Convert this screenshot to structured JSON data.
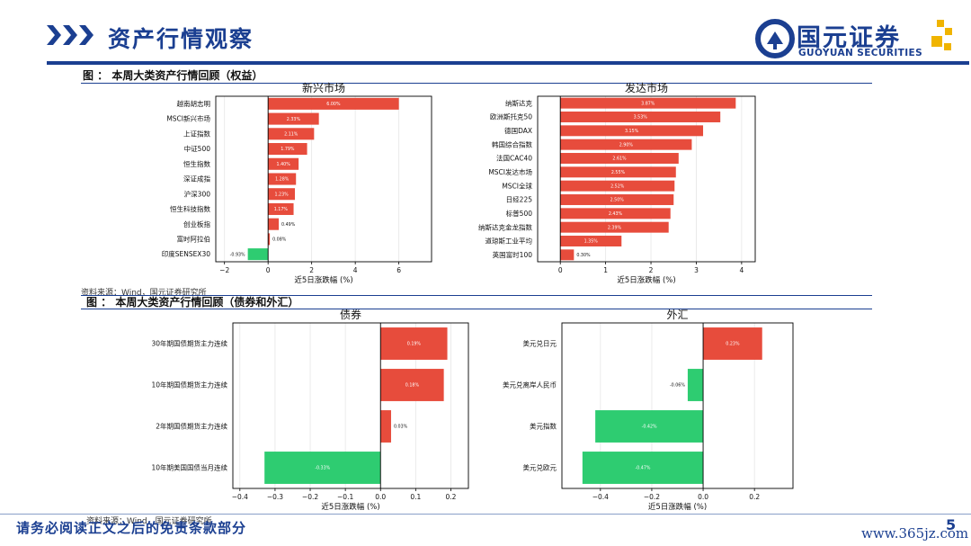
{
  "header": {
    "title": "资产行情观察"
  },
  "logo": {
    "name_cn": "国元证券",
    "name_en": "GUOYUAN SECURITIES"
  },
  "colors": {
    "brand": "#1b3f91",
    "positive": "#e74c3c",
    "negative": "#2ecc71",
    "logo_gold": "#f0b400"
  },
  "figures": {
    "equity": {
      "caption": "图 ： 本周大类资产行情回顾（权益）",
      "source": "资料来源：Wind，国元证券研究所"
    },
    "bonds_fx": {
      "caption": "图 ： 本周大类资产行情回顾（债券和外汇）",
      "source": "资料来源：Wind，国元证券研究所"
    }
  },
  "footer": {
    "disclaimer": "请务必阅读正文之后的免责条款部分",
    "page_number": "5",
    "watermark": "www.365jz.com"
  },
  "chart_data": [
    {
      "type": "bar",
      "orientation": "horizontal",
      "title": "新兴市场",
      "xlabel": "近5日涨跌幅 (%)",
      "xlim": [
        -2.4,
        7.5
      ],
      "xticks": [
        -2,
        0,
        2,
        4,
        6
      ],
      "categories": [
        "越南胡志明",
        "MSCI新兴市场",
        "上证指数",
        "中证500",
        "恒生指数",
        "深证成指",
        "沪深300",
        "恒生科技指数",
        "创业板指",
        "富时阿拉伯",
        "印度SENSEX30"
      ],
      "values": [
        6.0,
        2.33,
        2.11,
        1.79,
        1.4,
        1.28,
        1.23,
        1.17,
        0.49,
        0.08,
        -0.93
      ],
      "labels": [
        "6.00%",
        "2.33%",
        "2.11%",
        "1.79%",
        "1.40%",
        "1.28%",
        "1.23%",
        "1.17%",
        "0.49%",
        "0.08%",
        "-0.93%"
      ]
    },
    {
      "type": "bar",
      "orientation": "horizontal",
      "title": "发达市场",
      "xlabel": "近5日涨跌幅 (%)",
      "xlim": [
        -0.5,
        4.3
      ],
      "xticks": [
        0,
        1,
        2,
        3,
        4
      ],
      "categories": [
        "纳斯达克",
        "欧洲斯托克50",
        "德国DAX",
        "韩国综合指数",
        "法国CAC40",
        "MSCI发达市场",
        "MSCI全球",
        "日经225",
        "标普500",
        "纳斯达克金龙指数",
        "道琼斯工业平均",
        "英国富时100"
      ],
      "values": [
        3.87,
        3.53,
        3.15,
        2.9,
        2.61,
        2.55,
        2.52,
        2.5,
        2.43,
        2.39,
        1.35,
        0.3
      ],
      "labels": [
        "3.87%",
        "3.53%",
        "3.15%",
        "2.90%",
        "2.61%",
        "2.55%",
        "2.52%",
        "2.50%",
        "2.43%",
        "2.39%",
        "1.35%",
        "0.30%"
      ]
    },
    {
      "type": "bar",
      "orientation": "horizontal",
      "title": "债券",
      "xlabel": "近5日涨跌幅 (%)",
      "xlim": [
        -0.42,
        0.25
      ],
      "xticks": [
        -0.4,
        -0.3,
        -0.2,
        -0.1,
        0.0,
        0.1,
        0.2
      ],
      "categories": [
        "30年期国债期货主力连续",
        "10年期国债期货主力连续",
        "2年期国债期货主力连续",
        "10年期美国国债当月连续"
      ],
      "values": [
        0.19,
        0.18,
        0.03,
        -0.33
      ],
      "labels": [
        "0.19%",
        "0.18%",
        "0.03%",
        "-0.33%"
      ]
    },
    {
      "type": "bar",
      "orientation": "horizontal",
      "title": "外汇",
      "xlabel": "近5日涨跌幅 (%)",
      "xlim": [
        -0.55,
        0.35
      ],
      "xticks": [
        -0.4,
        -0.2,
        0.0,
        0.2
      ],
      "categories": [
        "美元兑日元",
        "美元兑离岸人民币",
        "美元指数",
        "美元兑欧元"
      ],
      "values": [
        0.23,
        -0.06,
        -0.42,
        -0.47
      ],
      "labels": [
        "0.23%",
        "-0.06%",
        "-0.42%",
        "-0.47%"
      ]
    }
  ]
}
